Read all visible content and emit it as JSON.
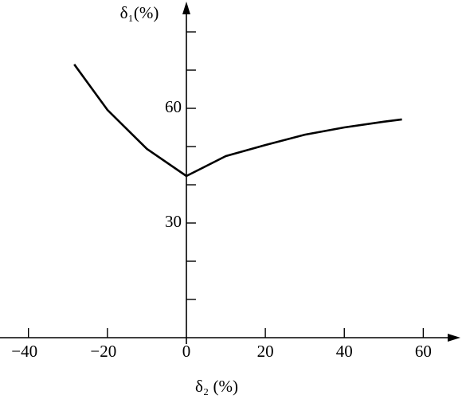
{
  "chart_data": {
    "type": "line",
    "x_label": "δ₂ (%)",
    "y_label": "δ₁(%)",
    "x": [
      -28.4,
      -20,
      -10,
      0,
      10,
      20,
      30,
      40,
      50,
      54.6
    ],
    "values": [
      71.5,
      59.6,
      49.4,
      42.3,
      47.5,
      50.4,
      53.1,
      55,
      56.5,
      57.1
    ],
    "color": "#000000",
    "xlim": [
      -47.2,
      68.8
    ],
    "ylim": [
      0,
      87.3
    ],
    "xticks": [
      {
        "value": -40,
        "label": "−40"
      },
      {
        "value": -20,
        "label": "−20"
      },
      0,
      20,
      40,
      60
    ],
    "yticks": [
      30,
      60
    ],
    "y_minor_ticks": [
      10,
      20,
      40,
      50,
      70,
      80
    ]
  }
}
